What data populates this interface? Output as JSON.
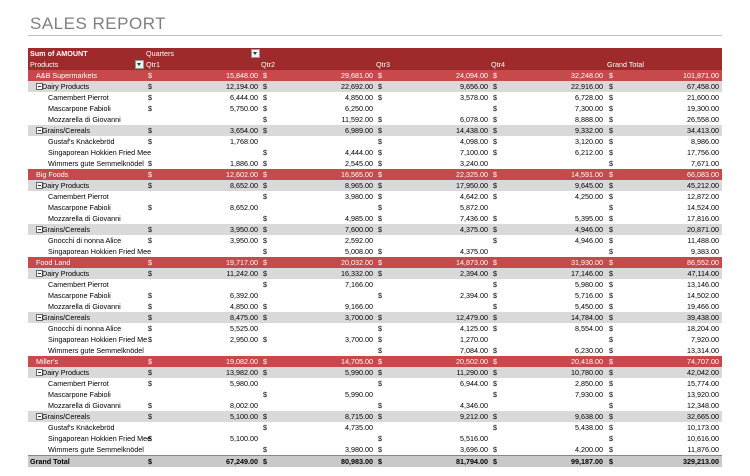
{
  "title": "SALES REPORT",
  "table": {
    "corner": "Sum of AMOUNT",
    "column_field": "Quarters",
    "row_field": "Products",
    "columns": [
      "Qtr1",
      "Qtr2",
      "Qtr3",
      "Qtr4",
      "Grand Total"
    ],
    "currency": "$",
    "rows": [
      {
        "label": "A&B Supermarkets",
        "kind": "customer",
        "cells": [
          "15,848.00",
          "29,681.00",
          "24,094.00",
          "32,248.00",
          "101,871.00"
        ]
      },
      {
        "label": "Dairy Products",
        "kind": "category",
        "cells": [
          "12,194.00",
          "22,692.00",
          "9,656.00",
          "22,916.00",
          "67,458.00"
        ]
      },
      {
        "label": "Camembert Pierrot",
        "kind": "product",
        "cells": [
          "6,444.00",
          "4,850.00",
          "3,578.00",
          "6,728.00",
          "21,600.00"
        ]
      },
      {
        "label": "Mascarpone Fabioli",
        "kind": "product",
        "cells": [
          "5,750.00",
          "6,250.00",
          null,
          "7,300.00",
          "19,300.00"
        ]
      },
      {
        "label": "Mozzarella di Giovanni",
        "kind": "product",
        "cells": [
          null,
          "11,592.00",
          "6,078.00",
          "8,888.00",
          "26,558.00"
        ]
      },
      {
        "label": "Grains/Cereals",
        "kind": "category",
        "cells": [
          "3,654.00",
          "6,989.00",
          "14,438.00",
          "9,332.00",
          "34,413.00"
        ]
      },
      {
        "label": "Gustaf's Knäckebröd",
        "kind": "product",
        "cells": [
          "1,768.00",
          null,
          "4,098.00",
          "3,120.00",
          "8,986.00"
        ]
      },
      {
        "label": "Singaporean Hokkien Fried Mee",
        "kind": "product",
        "cells": [
          null,
          "4,444.00",
          "7,100.00",
          "6,212.00",
          "17,756.00"
        ]
      },
      {
        "label": "Wimmers gute Semmelknödel",
        "kind": "product",
        "cells": [
          "1,886.00",
          "2,545.00",
          "3,240.00",
          null,
          "7,671.00"
        ]
      },
      {
        "label": "Big Foods",
        "kind": "customer",
        "cells": [
          "12,602.00",
          "16,565.00",
          "22,325.00",
          "14,591.00",
          "66,083.00"
        ]
      },
      {
        "label": "Dairy Products",
        "kind": "category",
        "cells": [
          "8,652.00",
          "8,965.00",
          "17,950.00",
          "9,645.00",
          "45,212.00"
        ]
      },
      {
        "label": "Camembert Pierrot",
        "kind": "product",
        "cells": [
          null,
          "3,980.00",
          "4,642.00",
          "4,250.00",
          "12,872.00"
        ]
      },
      {
        "label": "Mascarpone Fabioli",
        "kind": "product",
        "cells": [
          "8,652.00",
          null,
          "5,872.00",
          null,
          "14,524.00"
        ]
      },
      {
        "label": "Mozzarella di Giovanni",
        "kind": "product",
        "cells": [
          null,
          "4,985.00",
          "7,436.00",
          "5,395.00",
          "17,816.00"
        ]
      },
      {
        "label": "Grains/Cereals",
        "kind": "category",
        "cells": [
          "3,950.00",
          "7,600.00",
          "4,375.00",
          "4,946.00",
          "20,871.00"
        ]
      },
      {
        "label": "Gnocchi di nonna Alice",
        "kind": "product",
        "cells": [
          "3,950.00",
          "2,592.00",
          null,
          "4,946.00",
          "11,488.00"
        ]
      },
      {
        "label": "Singaporean Hokkien Fried Mee",
        "kind": "product",
        "cells": [
          null,
          "5,008.00",
          "4,375.00",
          null,
          "9,383.00"
        ]
      },
      {
        "label": "Food Land",
        "kind": "customer",
        "cells": [
          "19,717.00",
          "20,032.00",
          "14,873.00",
          "31,930.00",
          "86,552.00"
        ]
      },
      {
        "label": "Dairy Products",
        "kind": "category",
        "cells": [
          "11,242.00",
          "16,332.00",
          "2,394.00",
          "17,146.00",
          "47,114.00"
        ]
      },
      {
        "label": "Camembert Pierrot",
        "kind": "product",
        "cells": [
          null,
          "7,166.00",
          null,
          "5,980.00",
          "13,146.00"
        ]
      },
      {
        "label": "Mascarpone Fabioli",
        "kind": "product",
        "cells": [
          "6,392.00",
          null,
          "2,394.00",
          "5,716.00",
          "14,502.00"
        ]
      },
      {
        "label": "Mozzarella di Giovanni",
        "kind": "product",
        "cells": [
          "4,850.00",
          "9,166.00",
          null,
          "5,450.00",
          "19,466.00"
        ]
      },
      {
        "label": "Grains/Cereals",
        "kind": "category",
        "cells": [
          "8,475.00",
          "3,700.00",
          "12,479.00",
          "14,784.00",
          "39,438.00"
        ]
      },
      {
        "label": "Gnocchi di nonna Alice",
        "kind": "product",
        "cells": [
          "5,525.00",
          null,
          "4,125.00",
          "8,554.00",
          "18,204.00"
        ]
      },
      {
        "label": "Singaporean Hokkien Fried Me",
        "kind": "product",
        "cells": [
          "2,950.00",
          "3,700.00",
          "1,270.00",
          null,
          "7,920.00"
        ]
      },
      {
        "label": "Wimmers gute Semmelknödel",
        "kind": "product",
        "cells": [
          null,
          null,
          "7,084.00",
          "6,230.00",
          "13,314.00"
        ]
      },
      {
        "label": "Miller's",
        "kind": "customer",
        "cells": [
          "19,082.00",
          "14,705.00",
          "20,502.00",
          "20,418.00",
          "74,707.00"
        ]
      },
      {
        "label": "Dairy Products",
        "kind": "category",
        "cells": [
          "13,982.00",
          "5,990.00",
          "11,290.00",
          "10,780.00",
          "42,042.00"
        ]
      },
      {
        "label": "Camembert Pierrot",
        "kind": "product",
        "cells": [
          "5,980.00",
          null,
          "6,944.00",
          "2,850.00",
          "15,774.00"
        ]
      },
      {
        "label": "Mascarpone Fabioli",
        "kind": "product",
        "cells": [
          null,
          "5,990.00",
          null,
          "7,930.00",
          "13,920.00"
        ]
      },
      {
        "label": "Mozzarella di Giovanni",
        "kind": "product",
        "cells": [
          "8,002.00",
          null,
          "4,346.00",
          null,
          "12,348.00"
        ]
      },
      {
        "label": "Grains/Cereals",
        "kind": "category",
        "cells": [
          "5,100.00",
          "8,715.00",
          "9,212.00",
          "9,638.00",
          "32,665.00"
        ]
      },
      {
        "label": "Gustaf's Knäckebröd",
        "kind": "product",
        "cells": [
          null,
          "4,735.00",
          null,
          "5,438.00",
          "10,173.00"
        ]
      },
      {
        "label": "Singaporean Hokkien Fried Mee",
        "kind": "product",
        "cells": [
          "5,100.00",
          null,
          "5,516.00",
          null,
          "10,616.00"
        ]
      },
      {
        "label": "Wimmers gute Semmelknödel",
        "kind": "product",
        "cells": [
          null,
          "3,980.00",
          "3,696.00",
          "4,200.00",
          "11,876.00"
        ]
      },
      {
        "label": "Grand Total",
        "kind": "total",
        "cells": [
          "67,249.00",
          "80,983.00",
          "81,794.00",
          "99,187.00",
          "329,213.00"
        ]
      }
    ]
  }
}
